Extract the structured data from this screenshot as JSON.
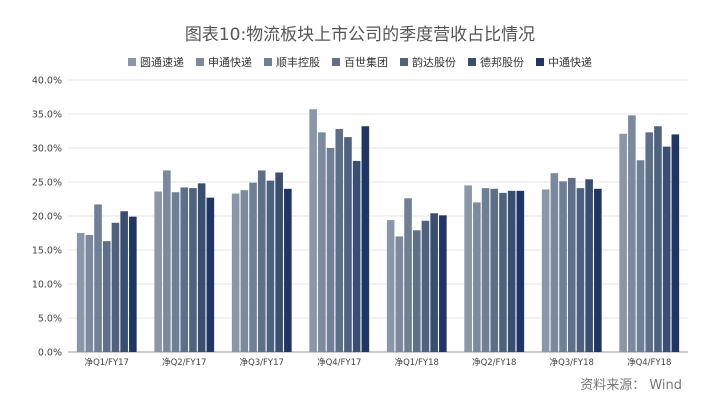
{
  "chart_data": {
    "type": "bar",
    "title": "图表10:物流板块上市公司的季度营收占比情况",
    "categories": [
      "净Q1/FY17",
      "净Q2/FY17",
      "净Q3/FY17",
      "净Q4/FY17",
      "净Q1/FY18",
      "净Q2/FY18",
      "净Q3/FY18",
      "净Q4/FY18"
    ],
    "series": [
      {
        "name": "圆通速递",
        "color": "#8a97a8",
        "values": [
          17.5,
          23.6,
          23.3,
          35.7,
          19.4,
          24.5,
          23.9,
          32.1
        ]
      },
      {
        "name": "申通快递",
        "color": "#7b8a9e",
        "values": [
          17.2,
          26.7,
          23.8,
          32.3,
          17.0,
          22.0,
          26.3,
          34.8
        ]
      },
      {
        "name": "顺丰控股",
        "color": "#6e7f96",
        "values": [
          21.7,
          23.5,
          24.9,
          30.0,
          22.6,
          24.1,
          25.1,
          28.2
        ]
      },
      {
        "name": "百世集团",
        "color": "#5e7089",
        "values": [
          16.3,
          24.2,
          26.7,
          32.8,
          17.9,
          24.0,
          25.6,
          32.3
        ]
      },
      {
        "name": "韵达股份",
        "color": "#4e627f",
        "values": [
          19.0,
          24.1,
          25.2,
          31.6,
          19.3,
          23.4,
          24.1,
          33.2
        ]
      },
      {
        "name": "德邦股份",
        "color": "#3a4f70",
        "values": [
          20.7,
          24.8,
          26.4,
          28.1,
          20.4,
          23.7,
          25.4,
          30.2
        ]
      },
      {
        "name": "中通快递",
        "color": "#1f3565",
        "values": [
          19.9,
          22.7,
          24.0,
          33.2,
          20.1,
          23.7,
          24.0,
          32.0
        ]
      }
    ],
    "yticks": [
      "0.0%",
      "5.0%",
      "10.0%",
      "15.0%",
      "20.0%",
      "25.0%",
      "30.0%",
      "35.0%",
      "40.0%"
    ],
    "ylim": [
      0,
      40
    ],
    "grid": true,
    "legend_position": "top",
    "source": "资料来源： Wind"
  }
}
